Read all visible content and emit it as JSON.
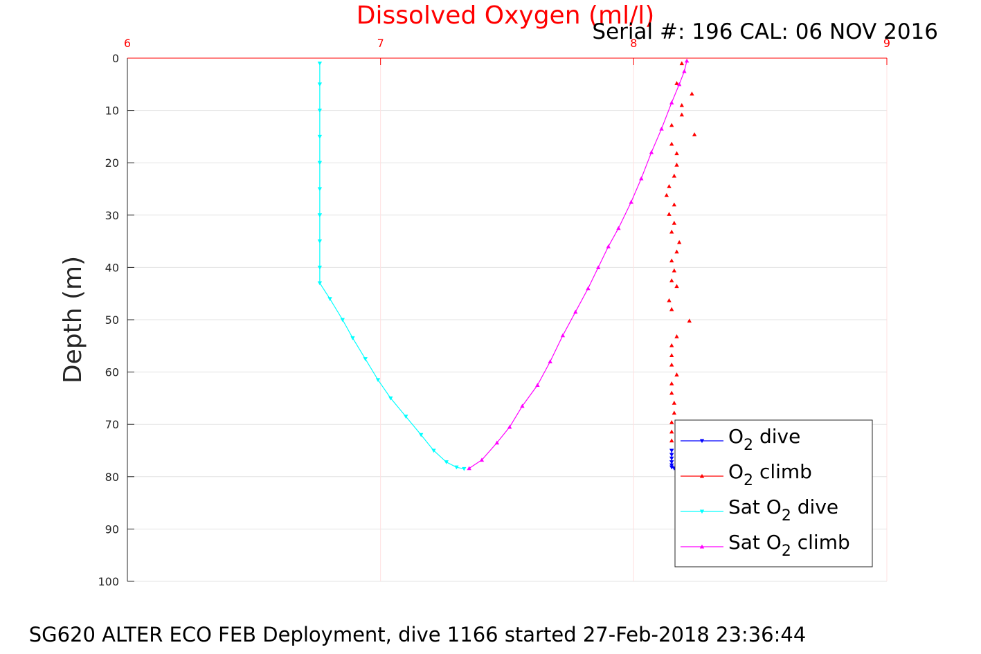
{
  "chart_data": {
    "type": "scatter",
    "title": "Dissolved Oxygen (ml/l)",
    "subtitle": "Serial #: 196  CAL: 06 NOV 2016",
    "footer": "SG620 ALTER ECO FEB Deployment, dive 1166 started 27-Feb-2018 23:36:44",
    "xlabel": "",
    "ylabel": "Depth (m)",
    "xlim": [
      6,
      9
    ],
    "ylim": [
      0,
      100
    ],
    "y_reversed": true,
    "x_axis_position": "top",
    "x_ticks": [
      "6",
      "7",
      "8",
      "9"
    ],
    "y_ticks": [
      "0",
      "10",
      "20",
      "30",
      "40",
      "50",
      "60",
      "70",
      "80",
      "90",
      "100"
    ],
    "grid": true,
    "legend_position": "bottom-right",
    "colors": {
      "title": "#ff0000",
      "x_axis": "#ff0000",
      "o2_dive": "#0000ff",
      "o2_climb": "#ff0000",
      "sat_dive": "#00ffff",
      "sat_climb": "#ff00ff"
    },
    "series": [
      {
        "name": "O2 dive",
        "legend": {
          "pre": "O",
          "sub": "2",
          "post": " dive"
        },
        "marker": "triangle-down",
        "points": [
          [
            8.15,
            75.0
          ],
          [
            8.15,
            75.8
          ],
          [
            8.15,
            76.5
          ],
          [
            8.15,
            77.2
          ],
          [
            8.15,
            77.8
          ],
          [
            8.15,
            78.2
          ],
          [
            8.16,
            78.4
          ]
        ]
      },
      {
        "name": "O2 climb",
        "legend": {
          "pre": "O",
          "sub": "2",
          "post": " climb"
        },
        "marker": "triangle-up",
        "points": [
          [
            8.19,
            1.0
          ],
          [
            8.17,
            4.8
          ],
          [
            8.23,
            6.8
          ],
          [
            8.19,
            9.0
          ],
          [
            8.19,
            10.8
          ],
          [
            8.15,
            12.8
          ],
          [
            8.24,
            14.6
          ],
          [
            8.15,
            16.4
          ],
          [
            8.17,
            18.2
          ],
          [
            8.17,
            20.4
          ],
          [
            8.16,
            22.5
          ],
          [
            8.14,
            24.5
          ],
          [
            8.13,
            26.2
          ],
          [
            8.16,
            28.0
          ],
          [
            8.14,
            29.8
          ],
          [
            8.16,
            31.5
          ],
          [
            8.15,
            33.2
          ],
          [
            8.18,
            35.2
          ],
          [
            8.17,
            37.0
          ],
          [
            8.15,
            38.7
          ],
          [
            8.16,
            40.6
          ],
          [
            8.15,
            42.5
          ],
          [
            8.17,
            43.6
          ],
          [
            8.14,
            46.3
          ],
          [
            8.15,
            48.0
          ],
          [
            8.22,
            50.2
          ],
          [
            8.17,
            53.2
          ],
          [
            8.15,
            54.9
          ],
          [
            8.15,
            56.8
          ],
          [
            8.15,
            58.6
          ],
          [
            8.17,
            60.5
          ],
          [
            8.15,
            62.2
          ],
          [
            8.15,
            64.0
          ],
          [
            8.16,
            65.9
          ],
          [
            8.16,
            67.8
          ],
          [
            8.15,
            69.6
          ],
          [
            8.15,
            71.4
          ],
          [
            8.15,
            73.1
          ]
        ]
      },
      {
        "name": "Sat O2 dive",
        "legend": {
          "pre": "Sat O",
          "sub": "2",
          "post": " dive"
        },
        "marker": "triangle-down",
        "points": [
          [
            6.76,
            1.0
          ],
          [
            6.76,
            5.0
          ],
          [
            6.76,
            10.0
          ],
          [
            6.76,
            15.0
          ],
          [
            6.76,
            20.0
          ],
          [
            6.76,
            25.0
          ],
          [
            6.76,
            30.0
          ],
          [
            6.76,
            35.0
          ],
          [
            6.76,
            40.0
          ],
          [
            6.76,
            43.0
          ],
          [
            6.8,
            46.0
          ],
          [
            6.85,
            50.0
          ],
          [
            6.89,
            53.5
          ],
          [
            6.94,
            57.5
          ],
          [
            6.99,
            61.5
          ],
          [
            7.04,
            65.0
          ],
          [
            7.1,
            68.5
          ],
          [
            7.16,
            72.0
          ],
          [
            7.21,
            75.0
          ],
          [
            7.26,
            77.2
          ],
          [
            7.3,
            78.2
          ],
          [
            7.33,
            78.5
          ]
        ]
      },
      {
        "name": "Sat O2 climb",
        "legend": {
          "pre": "Sat O",
          "sub": "2",
          "post": " climb"
        },
        "marker": "triangle-up",
        "points": [
          [
            7.35,
            78.4
          ],
          [
            7.4,
            76.8
          ],
          [
            7.46,
            73.5
          ],
          [
            7.51,
            70.5
          ],
          [
            7.56,
            66.5
          ],
          [
            7.62,
            62.5
          ],
          [
            7.67,
            58.0
          ],
          [
            7.72,
            53.0
          ],
          [
            7.77,
            48.5
          ],
          [
            7.82,
            44.0
          ],
          [
            7.86,
            40.0
          ],
          [
            7.9,
            36.0
          ],
          [
            7.94,
            32.5
          ],
          [
            7.99,
            27.5
          ],
          [
            8.03,
            23.0
          ],
          [
            8.07,
            18.0
          ],
          [
            8.11,
            13.5
          ],
          [
            8.15,
            8.5
          ],
          [
            8.18,
            5.0
          ],
          [
            8.2,
            2.5
          ],
          [
            8.21,
            0.5
          ]
        ]
      }
    ]
  }
}
